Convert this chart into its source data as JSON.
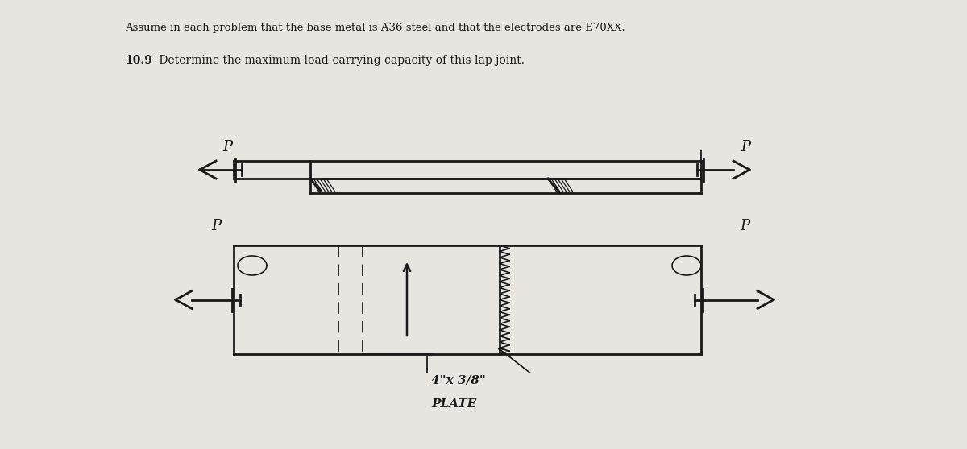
{
  "background_color": "#e8e4e0",
  "text_color": "#1a1a1a",
  "title_text": "Assume in each problem that the base metal is A36 steel and that the electrodes are E70XX.",
  "problem_bold": "10.9",
  "problem_rest": " Determine the maximum load-carrying capacity of this lap joint.",
  "plate_label_line1": "4\"x 3/8\"",
  "plate_label_line2": "PLATE",
  "load_label_P": "P",
  "fig_width": 12.0,
  "fig_height": 5.58
}
